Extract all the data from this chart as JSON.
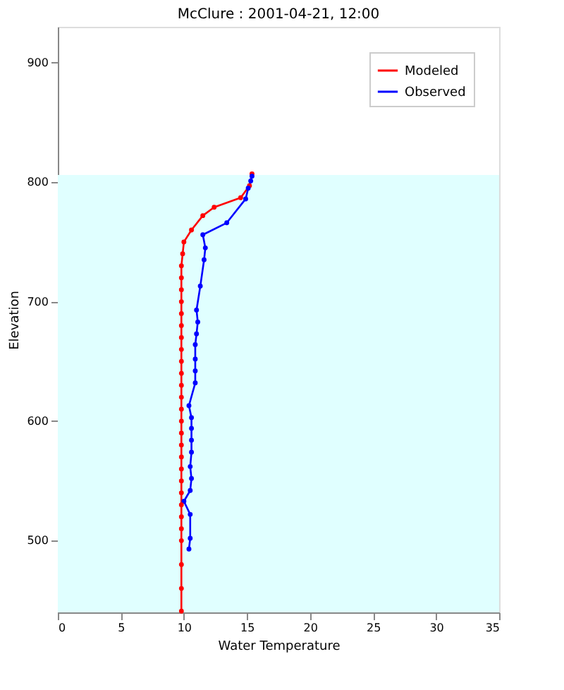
{
  "chart_data": {
    "type": "line",
    "title": "McClure : 2001-04-21, 12:00",
    "xlabel": "Water Temperature",
    "ylabel": "Elevation",
    "series": [
      {
        "name": "Modeled",
        "color": "#ff0000",
        "x": [
          15.4,
          15.2,
          14.5,
          12.4,
          11.5,
          10.6,
          10.0,
          9.9,
          9.8,
          9.8,
          9.8,
          9.8,
          9.8,
          9.8,
          9.8,
          9.8,
          9.8,
          9.8,
          9.8,
          9.8,
          9.8,
          9.8,
          9.8,
          9.8,
          9.8,
          9.8,
          9.8,
          9.8,
          9.8,
          9.8,
          9.8,
          9.8,
          9.8,
          9.8,
          9.8
        ],
        "values": [
          807,
          797,
          787,
          779,
          772,
          760,
          750,
          740,
          730,
          720,
          710,
          700,
          690,
          680,
          670,
          660,
          650,
          640,
          630,
          620,
          610,
          600,
          590,
          580,
          570,
          560,
          550,
          540,
          530,
          520,
          510,
          500,
          480,
          460,
          441
        ]
      },
      {
        "name": "Observed",
        "color": "#0000ff",
        "x": [
          15.4,
          15.3,
          15.1,
          14.9,
          13.4,
          11.5,
          11.7,
          11.6,
          11.3,
          11.0,
          11.1,
          11.0,
          10.9,
          10.9,
          10.9,
          10.9,
          10.4,
          10.6,
          10.6,
          10.6,
          10.6,
          10.5,
          10.6,
          10.5,
          10.0,
          10.5,
          10.5,
          10.4
        ],
        "values": [
          805,
          801,
          795,
          786,
          766,
          756,
          745,
          735,
          713,
          693,
          683,
          673,
          664,
          652,
          642,
          632,
          613,
          603,
          594,
          584,
          574,
          562,
          552,
          542,
          533,
          522,
          502,
          493
        ]
      }
    ],
    "xlim": [
      0,
      35
    ],
    "xticks": [
      0,
      5,
      10,
      15,
      20,
      25,
      30,
      35
    ],
    "ylim": [
      440,
      930
    ],
    "yticks": [
      500,
      600,
      700,
      800,
      900
    ],
    "bands": [
      {
        "axis": "y",
        "from": 440,
        "to": 806,
        "color": "#e0ffff"
      }
    ],
    "legend": "top right",
    "marker": "circle",
    "line_style": "solid",
    "grid": false
  }
}
